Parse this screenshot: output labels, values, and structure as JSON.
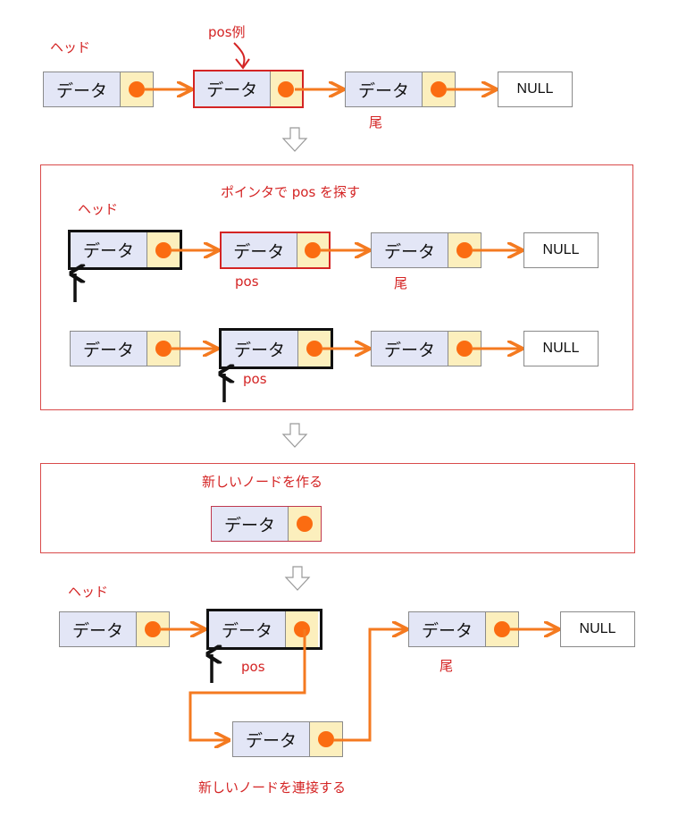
{
  "labels": {
    "head": "ヘッド",
    "pos_example": "pos例",
    "pos": "pos",
    "tail": "尾",
    "find_pos": "ポインタで pos を探す",
    "create_node": "新しいノードを作る",
    "connect_node": "新しいノードを連接する"
  },
  "node_text": "データ",
  "null_text": "NULL",
  "colors": {
    "arrow": "#f47a20",
    "pointer_dot": "#fb6c11",
    "data_cell": "#e3e6f6",
    "pointer_cell": "#fcefbd",
    "highlight_red": "#d42424",
    "highlight_black": "#111111",
    "label_red": "#d42424"
  }
}
